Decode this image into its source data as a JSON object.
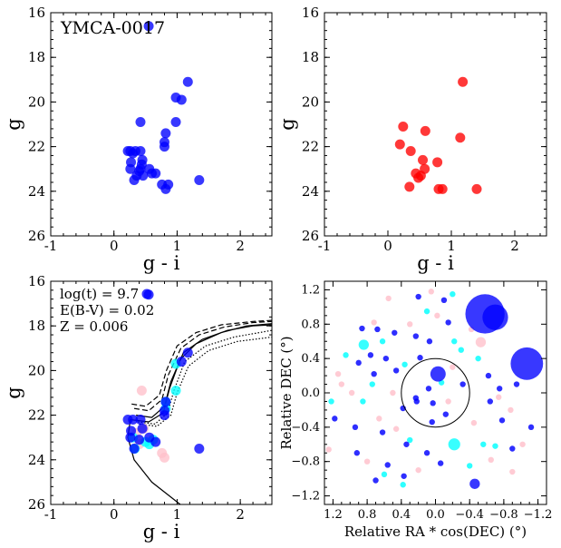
{
  "colors": {
    "member": "#0000ff",
    "nonmember": "#ff0000",
    "cyan": "#00ffff",
    "pink": "#ffc0cb",
    "iso": "#000000"
  },
  "chart_data": [
    {
      "type": "scatter",
      "id": "cmd_members",
      "annotation": "YMCA-0017",
      "xlabel": "g - i",
      "ylabel": "g",
      "xlim": [
        -1,
        2.5
      ],
      "ylim": [
        26,
        16
      ],
      "xticks": [
        "-1",
        "0",
        "1",
        "2"
      ],
      "yticks": [
        "16",
        "18",
        "20",
        "22",
        "24",
        "26"
      ],
      "series": [
        {
          "color": "member",
          "points": [
            [
              0.55,
              16.6
            ],
            [
              1.17,
              19.1
            ],
            [
              0.98,
              19.8
            ],
            [
              1.07,
              19.9
            ],
            [
              0.98,
              20.9
            ],
            [
              0.42,
              20.9
            ],
            [
              0.82,
              21.4
            ],
            [
              0.8,
              21.8
            ],
            [
              0.8,
              22.0
            ],
            [
              0.26,
              22.2
            ],
            [
              0.34,
              22.2
            ],
            [
              0.22,
              22.2
            ],
            [
              0.42,
              22.2
            ],
            [
              0.3,
              22.3
            ],
            [
              0.45,
              22.6
            ],
            [
              0.27,
              22.7
            ],
            [
              0.44,
              22.8
            ],
            [
              0.42,
              23.0
            ],
            [
              0.26,
              23.0
            ],
            [
              0.56,
              23.0
            ],
            [
              0.4,
              23.1
            ],
            [
              0.66,
              23.2
            ],
            [
              0.6,
              23.2
            ],
            [
              0.36,
              23.3
            ],
            [
              0.46,
              23.3
            ],
            [
              1.35,
              23.5
            ],
            [
              0.32,
              23.5
            ],
            [
              0.76,
              23.7
            ],
            [
              0.86,
              23.7
            ],
            [
              0.82,
              23.9
            ]
          ]
        }
      ]
    },
    {
      "type": "scatter",
      "id": "cmd_nonmembers",
      "xlabel": "g - i",
      "ylabel": "g",
      "xlim": [
        -1,
        2.5
      ],
      "ylim": [
        26,
        16
      ],
      "xticks": [
        "-1",
        "0",
        "1",
        "2"
      ],
      "yticks": [
        "16",
        "18",
        "20",
        "22",
        "24",
        "26"
      ],
      "series": [
        {
          "color": "nonmember",
          "points": [
            [
              1.18,
              19.1
            ],
            [
              0.24,
              21.1
            ],
            [
              0.59,
              21.3
            ],
            [
              1.14,
              21.6
            ],
            [
              0.19,
              21.9
            ],
            [
              0.36,
              22.2
            ],
            [
              0.55,
              22.6
            ],
            [
              0.78,
              22.7
            ],
            [
              0.58,
              23.0
            ],
            [
              0.44,
              23.2
            ],
            [
              0.52,
              23.3
            ],
            [
              0.48,
              23.4
            ],
            [
              0.34,
              23.8
            ],
            [
              0.8,
              23.9
            ],
            [
              0.86,
              23.9
            ],
            [
              1.4,
              23.9
            ]
          ]
        }
      ]
    },
    {
      "type": "scatter",
      "id": "cmd_isochrone",
      "annotation_lines": [
        "log(t) = 9.7",
        "E(B-V) = 0.02",
        "Z = 0.006"
      ],
      "xlabel": "g - i",
      "ylabel": "g",
      "xlim": [
        -1,
        2.5
      ],
      "ylim": [
        26,
        16
      ],
      "xticks": [
        "-1",
        "0",
        "1",
        "2"
      ],
      "yticks": [
        "16",
        "18",
        "20",
        "22",
        "24",
        "26"
      ],
      "series": [
        {
          "color": "pink",
          "points": [
            [
              0.44,
              20.9
            ],
            [
              0.47,
              22.6
            ],
            [
              0.76,
              23.7
            ],
            [
              0.8,
              23.9
            ],
            [
              0.4,
              23.3
            ],
            [
              0.36,
              22.8
            ]
          ]
        },
        {
          "color": "cyan",
          "points": [
            [
              0.98,
              19.7
            ],
            [
              0.98,
              20.9
            ],
            [
              0.82,
              21.7
            ],
            [
              0.3,
              23.0
            ],
            [
              0.33,
              23.5
            ],
            [
              0.62,
              23.1
            ],
            [
              0.5,
              23.2
            ],
            [
              0.56,
              23.3
            ],
            [
              0.82,
              21.4
            ]
          ]
        },
        {
          "color": "member",
          "points": [
            [
              0.55,
              16.6
            ],
            [
              1.17,
              19.2
            ],
            [
              1.07,
              19.6
            ],
            [
              0.82,
              21.4
            ],
            [
              0.8,
              21.8
            ],
            [
              0.8,
              22.0
            ],
            [
              0.22,
              22.2
            ],
            [
              0.3,
              22.2
            ],
            [
              0.42,
              22.2
            ],
            [
              0.27,
              22.7
            ],
            [
              0.45,
              22.6
            ],
            [
              0.26,
              23.0
            ],
            [
              0.56,
              23.0
            ],
            [
              0.4,
              23.1
            ],
            [
              0.66,
              23.2
            ],
            [
              1.35,
              23.5
            ],
            [
              0.32,
              23.5
            ]
          ]
        }
      ],
      "isochrones": [
        {
          "style": "solid",
          "points": [
            [
              1.05,
              26.0
            ],
            [
              0.6,
              25.0
            ],
            [
              0.32,
              24.0
            ],
            [
              0.22,
              23.0
            ],
            [
              0.26,
              22.2
            ],
            [
              0.55,
              22.3
            ],
            [
              0.78,
              21.9
            ],
            [
              0.88,
              20.8
            ],
            [
              1.05,
              19.5
            ],
            [
              1.3,
              18.8
            ],
            [
              1.7,
              18.3
            ],
            [
              2.1,
              18.0
            ],
            [
              2.5,
              17.9
            ]
          ]
        },
        {
          "style": "solid",
          "points": [
            [
              0.35,
              22.0
            ],
            [
              0.6,
              22.1
            ],
            [
              0.8,
              21.6
            ],
            [
              0.9,
              20.5
            ],
            [
              1.1,
              19.2
            ],
            [
              1.4,
              18.6
            ],
            [
              1.8,
              18.2
            ],
            [
              2.2,
              18.0
            ],
            [
              2.5,
              17.95
            ]
          ]
        },
        {
          "style": "dashed",
          "points": [
            [
              0.32,
              21.7
            ],
            [
              0.55,
              21.8
            ],
            [
              0.76,
              21.3
            ],
            [
              0.86,
              20.2
            ],
            [
              1.06,
              19.0
            ],
            [
              1.35,
              18.4
            ],
            [
              1.75,
              18.05
            ],
            [
              2.2,
              17.85
            ],
            [
              2.5,
              17.8
            ]
          ]
        },
        {
          "style": "dashed",
          "points": [
            [
              0.28,
              21.5
            ],
            [
              0.5,
              21.6
            ],
            [
              0.72,
              21.1
            ],
            [
              0.83,
              20.0
            ],
            [
              1.0,
              18.9
            ],
            [
              1.3,
              18.3
            ],
            [
              1.7,
              17.95
            ],
            [
              2.2,
              17.8
            ],
            [
              2.5,
              17.75
            ]
          ]
        },
        {
          "style": "dotted",
          "points": [
            [
              0.38,
              22.3
            ],
            [
              0.65,
              22.4
            ],
            [
              0.85,
              21.9
            ],
            [
              0.95,
              20.9
            ],
            [
              1.12,
              19.6
            ],
            [
              1.45,
              18.9
            ],
            [
              1.9,
              18.5
            ],
            [
              2.3,
              18.3
            ],
            [
              2.5,
              18.2
            ]
          ]
        },
        {
          "style": "dotted",
          "points": [
            [
              0.4,
              22.4
            ],
            [
              0.68,
              22.5
            ],
            [
              0.9,
              22.0
            ],
            [
              1.0,
              21.0
            ],
            [
              1.18,
              19.8
            ],
            [
              1.5,
              19.1
            ],
            [
              1.95,
              18.7
            ],
            [
              2.5,
              18.5
            ]
          ]
        }
      ]
    },
    {
      "type": "scatter",
      "id": "sky_map",
      "xlabel": "Relative RA * cos(DEC) (°)",
      "ylabel": "Relative DEC (°)",
      "xlim": [
        1.3,
        -1.3
      ],
      "ylim": [
        -1.3,
        1.3
      ],
      "xticks": [
        "1.2",
        "0.8",
        "0.4",
        "0.0",
        "−0.4",
        "−0.8",
        "−1.2"
      ],
      "yticks": [
        "1.2",
        "0.8",
        "0.4",
        "0.0",
        "−0.4",
        "−0.8",
        "−1.2"
      ],
      "circle_radius": 0.4,
      "big_blobs": [
        {
          "color": "member",
          "x": -0.58,
          "y": 0.92,
          "r": 0.23
        },
        {
          "color": "member",
          "x": -0.7,
          "y": 0.88,
          "r": 0.15
        },
        {
          "color": "member",
          "x": -1.07,
          "y": 0.34,
          "r": 0.19
        },
        {
          "color": "cyan",
          "x": 0.84,
          "y": 0.56,
          "r": 0.06
        },
        {
          "color": "pink",
          "x": -0.53,
          "y": 0.59,
          "r": 0.06
        },
        {
          "color": "member",
          "x": -0.03,
          "y": 0.22,
          "r": 0.09
        },
        {
          "color": "member",
          "x": -0.46,
          "y": -1.06,
          "r": 0.06
        },
        {
          "color": "cyan",
          "x": -0.22,
          "y": -0.6,
          "r": 0.07
        }
      ],
      "points": {
        "member": [
          [
            0.2,
            1.12
          ],
          [
            -0.1,
            1.08
          ],
          [
            0.68,
            0.74
          ],
          [
            0.86,
            0.75
          ],
          [
            0.48,
            0.7
          ],
          [
            -0.15,
            0.82
          ],
          [
            0.07,
            0.6
          ],
          [
            0.23,
            0.66
          ],
          [
            0.9,
            0.35
          ],
          [
            0.76,
            0.44
          ],
          [
            0.18,
            0.41
          ],
          [
            0.58,
            0.4
          ],
          [
            0.46,
            0.26
          ],
          [
            0.72,
            0.22
          ],
          [
            -0.62,
            0.2
          ],
          [
            -0.75,
            0.05
          ],
          [
            -0.32,
            0.1
          ],
          [
            0.08,
            0.05
          ],
          [
            0.22,
            -0.1
          ],
          [
            0.38,
            -0.18
          ],
          [
            -0.12,
            -0.25
          ],
          [
            0.04,
            -0.34
          ],
          [
            -0.64,
            -0.1
          ],
          [
            -0.78,
            -0.32
          ],
          [
            1.18,
            -0.3
          ],
          [
            0.94,
            -0.4
          ],
          [
            0.62,
            -0.46
          ],
          [
            0.34,
            -0.6
          ],
          [
            0.1,
            -0.7
          ],
          [
            -0.06,
            -0.82
          ],
          [
            0.56,
            -0.84
          ],
          [
            0.92,
            -0.7
          ],
          [
            0.7,
            -1.02
          ],
          [
            0.37,
            -0.97
          ],
          [
            -0.9,
            -0.65
          ],
          [
            -1.12,
            -0.4
          ],
          [
            -0.95,
            0.1
          ],
          [
            0.23,
            -0.06
          ],
          [
            0.03,
            -0.12
          ]
        ],
        "cyan": [
          [
            -0.2,
            1.15
          ],
          [
            0.1,
            0.95
          ],
          [
            -0.22,
            0.6
          ],
          [
            0.62,
            0.6
          ],
          [
            1.05,
            0.44
          ],
          [
            0.36,
            0.33
          ],
          [
            -0.3,
            0.5
          ],
          [
            0.74,
            0.1
          ],
          [
            0.85,
            -0.1
          ],
          [
            1.22,
            -0.1
          ],
          [
            -0.7,
            -0.62
          ],
          [
            -0.56,
            -0.6
          ],
          [
            0.3,
            -0.55
          ],
          [
            0.38,
            -1.07
          ],
          [
            0.6,
            -0.95
          ],
          [
            -0.4,
            -0.85
          ],
          [
            -0.07,
            0.12
          ],
          [
            -0.5,
            0.4
          ]
        ],
        "pink": [
          [
            0.05,
            1.18
          ],
          [
            0.55,
            1.1
          ],
          [
            -0.02,
            0.9
          ],
          [
            0.3,
            0.8
          ],
          [
            -0.42,
            0.74
          ],
          [
            0.72,
            0.82
          ],
          [
            1.14,
            0.22
          ],
          [
            0.98,
            0.0
          ],
          [
            1.1,
            0.1
          ],
          [
            -0.2,
            0.3
          ],
          [
            -0.74,
            -0.05
          ],
          [
            -0.88,
            -0.2
          ],
          [
            0.66,
            -0.3
          ],
          [
            0.46,
            -0.42
          ],
          [
            -0.45,
            -0.35
          ],
          [
            -1.02,
            -0.6
          ],
          [
            -0.65,
            -0.78
          ],
          [
            -0.9,
            -0.92
          ],
          [
            0.2,
            -0.9
          ],
          [
            0.8,
            -0.8
          ],
          [
            1.25,
            -0.66
          ],
          [
            -0.15,
            -0.1
          ],
          [
            0.5,
            0.0
          ]
        ]
      }
    }
  ]
}
